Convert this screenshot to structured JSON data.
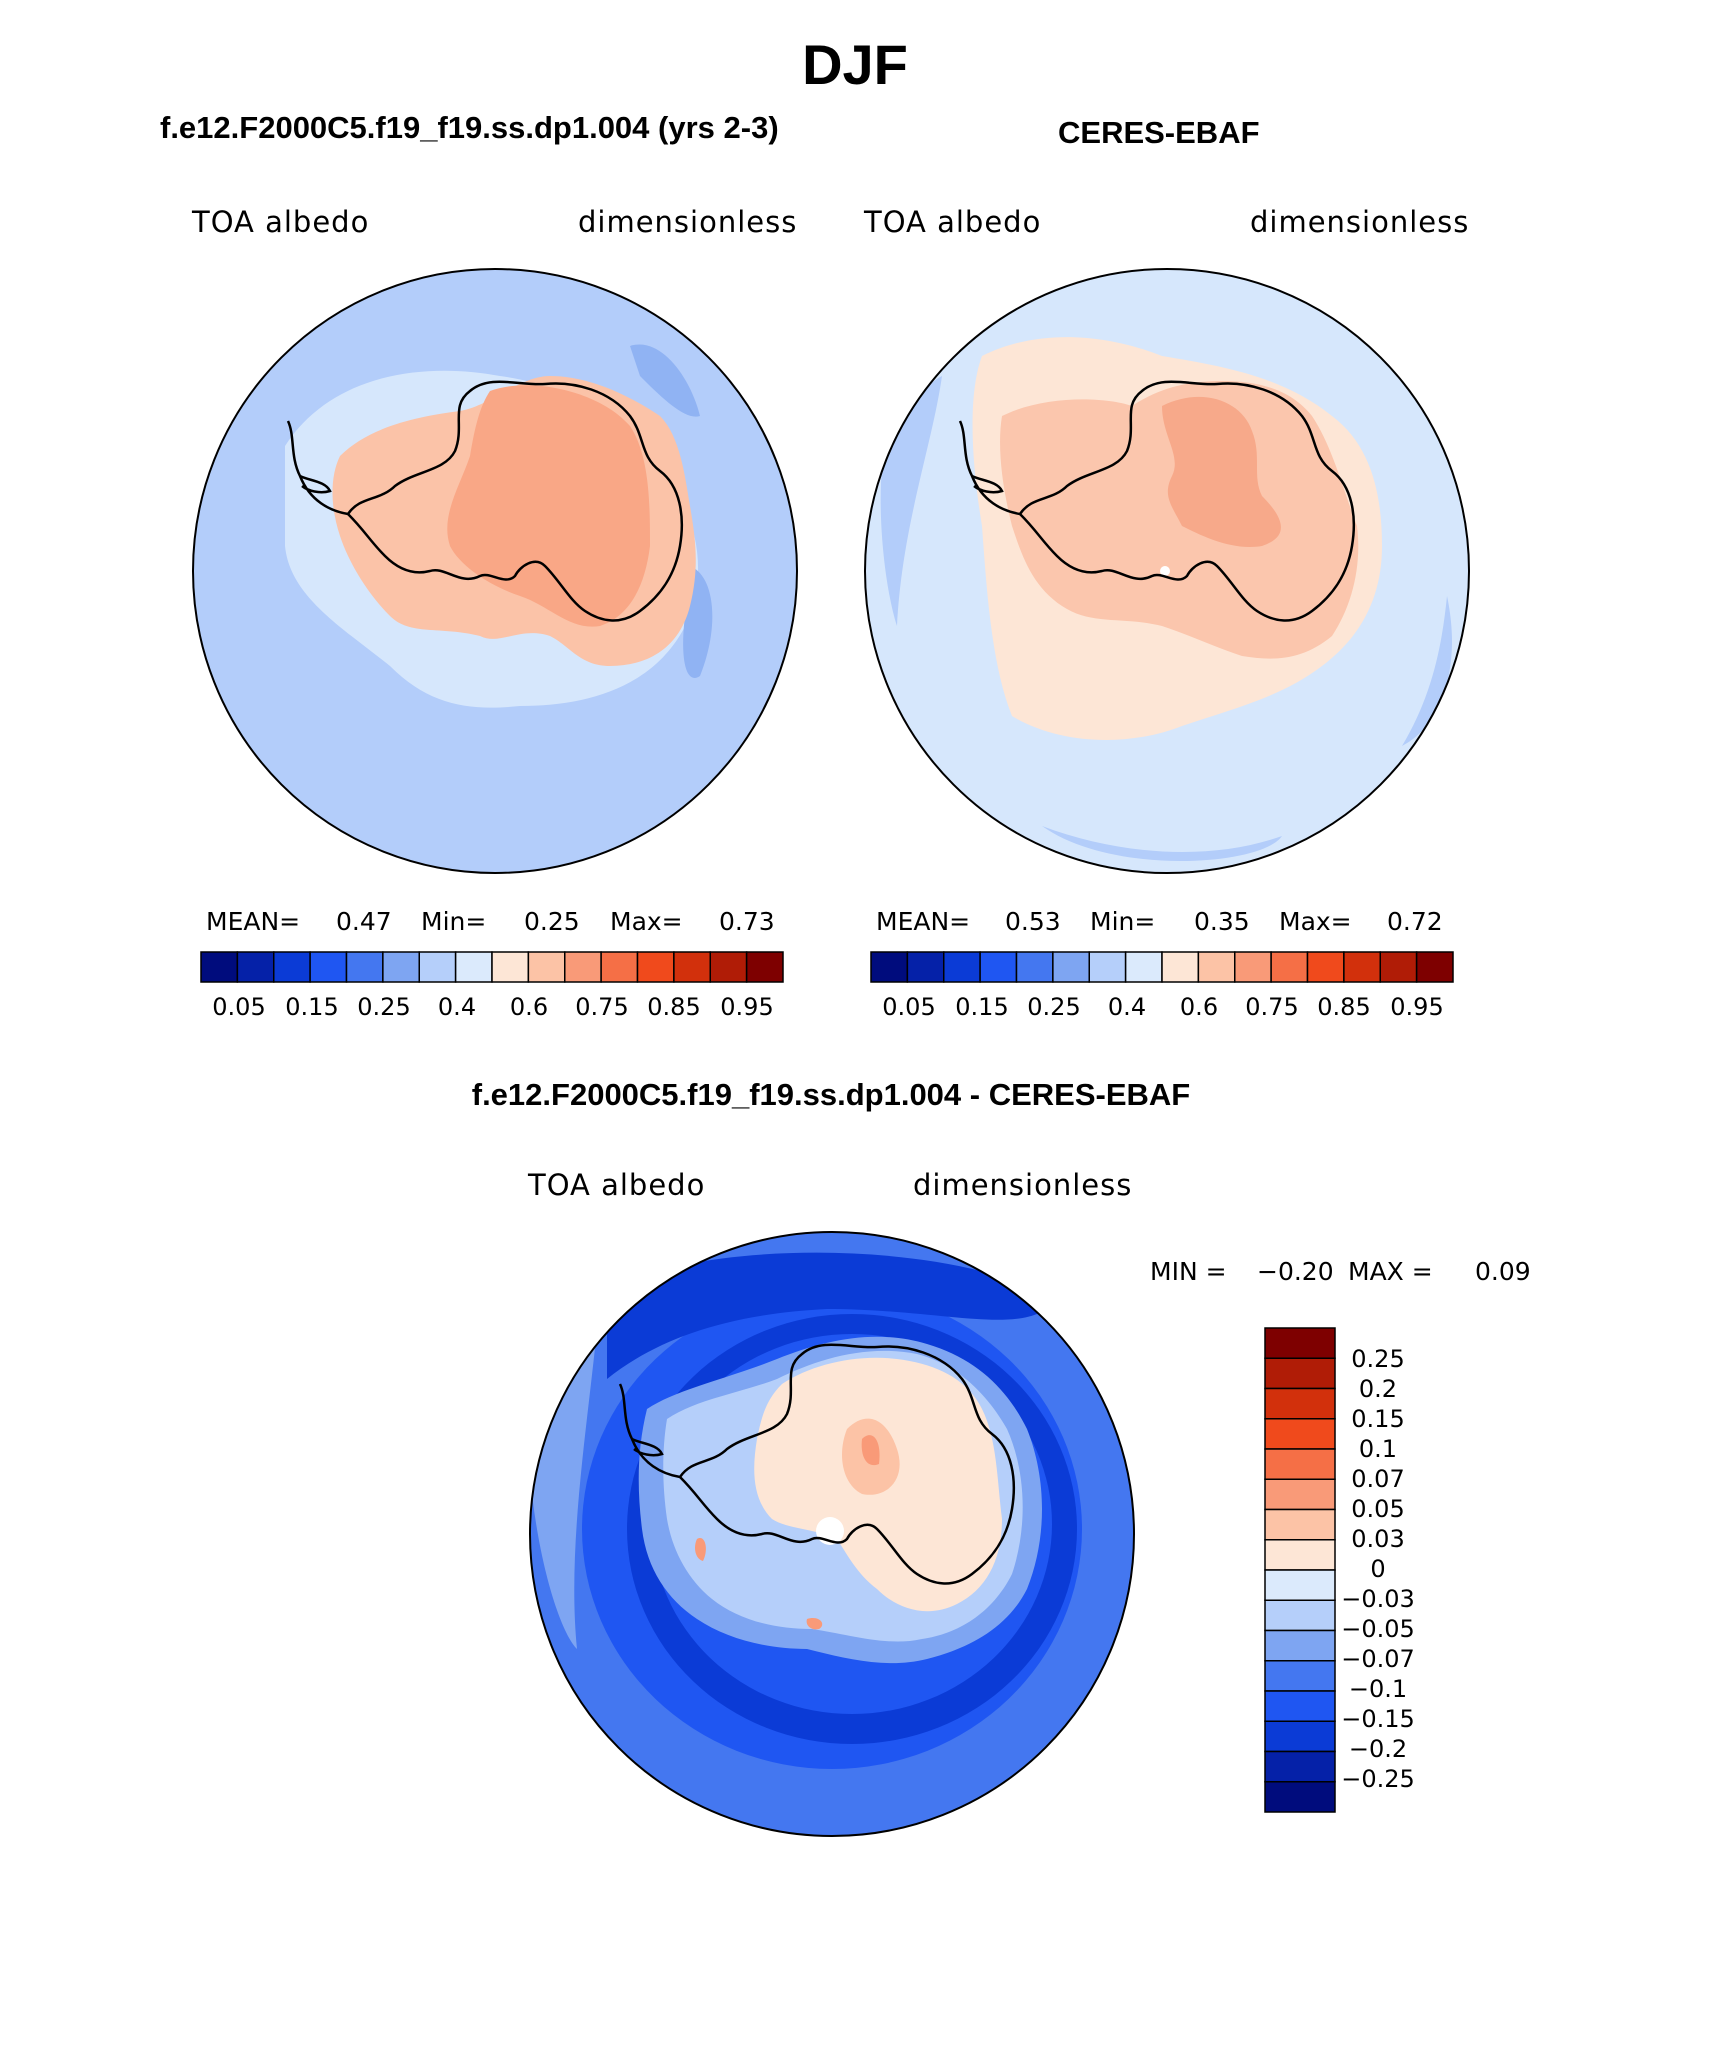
{
  "page_title": "DJF",
  "panels": [
    {
      "subtitle": "f.e12.F2000C5.f19_f19.ss.dp1.004 (yrs 2-3)",
      "variable_label": "TOA albedo",
      "units_label": "dimensionless",
      "stats": {
        "mean_label": "MEAN=",
        "mean": "0.47",
        "min_label": "Min=",
        "min": "0.25",
        "max_label": "Max=",
        "max": "0.73"
      },
      "ocean_color": "#b3cdfa",
      "ice_color": "#fbc3a8",
      "interior_color": "#f9a786"
    },
    {
      "subtitle": "CERES-EBAF",
      "variable_label": "TOA albedo",
      "units_label": "dimensionless",
      "stats": {
        "mean_label": "MEAN=",
        "mean": "0.53",
        "min_label": "Min=",
        "min": "0.35",
        "max_label": "Max=",
        "max": "0.72"
      },
      "ocean_color": "#d6e7fc",
      "ice_color": "#fbc6ad",
      "interior_color": "#f7a98a"
    }
  ],
  "colorbar": {
    "colors": [
      "#000c7d",
      "#0521a8",
      "#0b3bd6",
      "#1f56f2",
      "#4477f0",
      "#7ea5f2",
      "#b5cffa",
      "#dbeafc",
      "#fde6d6",
      "#fcc3a6",
      "#f99a78",
      "#f56f46",
      "#f04a1c",
      "#d2300c",
      "#b01c06",
      "#7e0000"
    ],
    "tick_labels": [
      "0.05",
      "0.15",
      "0.25",
      "0.4",
      "0.6",
      "0.75",
      "0.85",
      "0.95"
    ]
  },
  "difference": {
    "subtitle": "f.e12.F2000C5.f19_f19.ss.dp1.004 - CERES-EBAF",
    "variable_label": "TOA albedo",
    "units_label": "dimensionless",
    "min_label": "MIN =",
    "min": "−0.20",
    "max_label": "MAX =",
    "max": "0.09",
    "colorbar": {
      "colors_top_to_bottom": [
        "#7e0000",
        "#b01c06",
        "#d2300c",
        "#f04a1c",
        "#f56f46",
        "#f99a78",
        "#fcc3a6",
        "#fde6d6",
        "#dbeafc",
        "#b5cffa",
        "#7ea5f2",
        "#4477f0",
        "#1f56f2",
        "#0b3bd6",
        "#0521a8",
        "#000c7d"
      ],
      "tick_labels_top_to_bottom": [
        "0.25",
        "0.2",
        "0.15",
        "0.1",
        "0.07",
        "0.05",
        "0.03",
        "0",
        "−0.03",
        "−0.05",
        "−0.07",
        "−0.1",
        "−0.15",
        "−0.2",
        "−0.25"
      ]
    },
    "ocean_outer_color": "#2057ee",
    "ocean_ring_color": "#0b3bd6",
    "coast_band_color": "#b5cffa",
    "land_color": "#fde6d6"
  }
}
